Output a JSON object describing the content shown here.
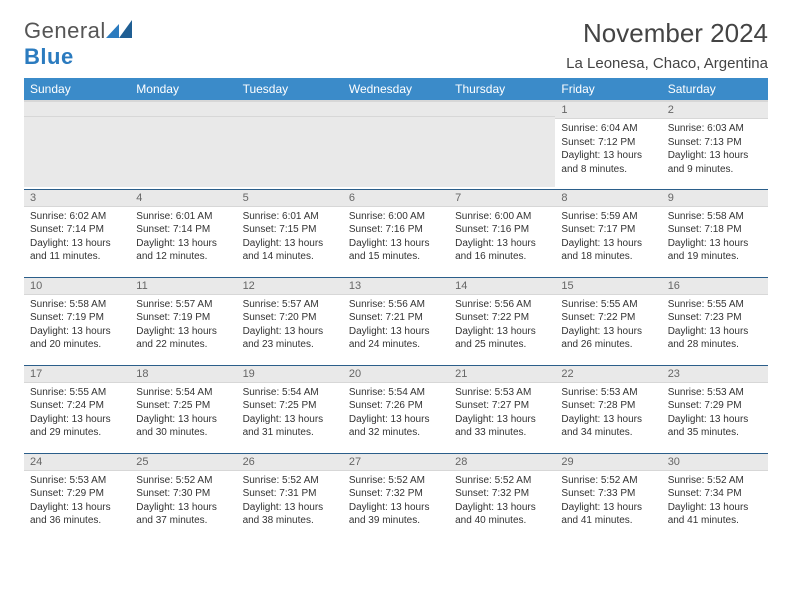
{
  "logo": {
    "text1": "General",
    "text2": "Blue"
  },
  "header": {
    "month": "November 2024",
    "location": "La Leonesa, Chaco, Argentina"
  },
  "dayNames": [
    "Sunday",
    "Monday",
    "Tuesday",
    "Wednesday",
    "Thursday",
    "Friday",
    "Saturday"
  ],
  "style": {
    "header_bg": "#3b8bc9",
    "header_text": "#ffffff",
    "daynum_bg": "#e9e9e9",
    "row_border": "#2b5e8a",
    "title_color": "#444444",
    "body_font_size": 10
  },
  "weeks": [
    [
      {
        "n": "",
        "sr": "",
        "ss": "",
        "dl": ""
      },
      {
        "n": "",
        "sr": "",
        "ss": "",
        "dl": ""
      },
      {
        "n": "",
        "sr": "",
        "ss": "",
        "dl": ""
      },
      {
        "n": "",
        "sr": "",
        "ss": "",
        "dl": ""
      },
      {
        "n": "",
        "sr": "",
        "ss": "",
        "dl": ""
      },
      {
        "n": "1",
        "sr": "Sunrise: 6:04 AM",
        "ss": "Sunset: 7:12 PM",
        "dl": "Daylight: 13 hours and 8 minutes."
      },
      {
        "n": "2",
        "sr": "Sunrise: 6:03 AM",
        "ss": "Sunset: 7:13 PM",
        "dl": "Daylight: 13 hours and 9 minutes."
      }
    ],
    [
      {
        "n": "3",
        "sr": "Sunrise: 6:02 AM",
        "ss": "Sunset: 7:14 PM",
        "dl": "Daylight: 13 hours and 11 minutes."
      },
      {
        "n": "4",
        "sr": "Sunrise: 6:01 AM",
        "ss": "Sunset: 7:14 PM",
        "dl": "Daylight: 13 hours and 12 minutes."
      },
      {
        "n": "5",
        "sr": "Sunrise: 6:01 AM",
        "ss": "Sunset: 7:15 PM",
        "dl": "Daylight: 13 hours and 14 minutes."
      },
      {
        "n": "6",
        "sr": "Sunrise: 6:00 AM",
        "ss": "Sunset: 7:16 PM",
        "dl": "Daylight: 13 hours and 15 minutes."
      },
      {
        "n": "7",
        "sr": "Sunrise: 6:00 AM",
        "ss": "Sunset: 7:16 PM",
        "dl": "Daylight: 13 hours and 16 minutes."
      },
      {
        "n": "8",
        "sr": "Sunrise: 5:59 AM",
        "ss": "Sunset: 7:17 PM",
        "dl": "Daylight: 13 hours and 18 minutes."
      },
      {
        "n": "9",
        "sr": "Sunrise: 5:58 AM",
        "ss": "Sunset: 7:18 PM",
        "dl": "Daylight: 13 hours and 19 minutes."
      }
    ],
    [
      {
        "n": "10",
        "sr": "Sunrise: 5:58 AM",
        "ss": "Sunset: 7:19 PM",
        "dl": "Daylight: 13 hours and 20 minutes."
      },
      {
        "n": "11",
        "sr": "Sunrise: 5:57 AM",
        "ss": "Sunset: 7:19 PM",
        "dl": "Daylight: 13 hours and 22 minutes."
      },
      {
        "n": "12",
        "sr": "Sunrise: 5:57 AM",
        "ss": "Sunset: 7:20 PM",
        "dl": "Daylight: 13 hours and 23 minutes."
      },
      {
        "n": "13",
        "sr": "Sunrise: 5:56 AM",
        "ss": "Sunset: 7:21 PM",
        "dl": "Daylight: 13 hours and 24 minutes."
      },
      {
        "n": "14",
        "sr": "Sunrise: 5:56 AM",
        "ss": "Sunset: 7:22 PM",
        "dl": "Daylight: 13 hours and 25 minutes."
      },
      {
        "n": "15",
        "sr": "Sunrise: 5:55 AM",
        "ss": "Sunset: 7:22 PM",
        "dl": "Daylight: 13 hours and 26 minutes."
      },
      {
        "n": "16",
        "sr": "Sunrise: 5:55 AM",
        "ss": "Sunset: 7:23 PM",
        "dl": "Daylight: 13 hours and 28 minutes."
      }
    ],
    [
      {
        "n": "17",
        "sr": "Sunrise: 5:55 AM",
        "ss": "Sunset: 7:24 PM",
        "dl": "Daylight: 13 hours and 29 minutes."
      },
      {
        "n": "18",
        "sr": "Sunrise: 5:54 AM",
        "ss": "Sunset: 7:25 PM",
        "dl": "Daylight: 13 hours and 30 minutes."
      },
      {
        "n": "19",
        "sr": "Sunrise: 5:54 AM",
        "ss": "Sunset: 7:25 PM",
        "dl": "Daylight: 13 hours and 31 minutes."
      },
      {
        "n": "20",
        "sr": "Sunrise: 5:54 AM",
        "ss": "Sunset: 7:26 PM",
        "dl": "Daylight: 13 hours and 32 minutes."
      },
      {
        "n": "21",
        "sr": "Sunrise: 5:53 AM",
        "ss": "Sunset: 7:27 PM",
        "dl": "Daylight: 13 hours and 33 minutes."
      },
      {
        "n": "22",
        "sr": "Sunrise: 5:53 AM",
        "ss": "Sunset: 7:28 PM",
        "dl": "Daylight: 13 hours and 34 minutes."
      },
      {
        "n": "23",
        "sr": "Sunrise: 5:53 AM",
        "ss": "Sunset: 7:29 PM",
        "dl": "Daylight: 13 hours and 35 minutes."
      }
    ],
    [
      {
        "n": "24",
        "sr": "Sunrise: 5:53 AM",
        "ss": "Sunset: 7:29 PM",
        "dl": "Daylight: 13 hours and 36 minutes."
      },
      {
        "n": "25",
        "sr": "Sunrise: 5:52 AM",
        "ss": "Sunset: 7:30 PM",
        "dl": "Daylight: 13 hours and 37 minutes."
      },
      {
        "n": "26",
        "sr": "Sunrise: 5:52 AM",
        "ss": "Sunset: 7:31 PM",
        "dl": "Daylight: 13 hours and 38 minutes."
      },
      {
        "n": "27",
        "sr": "Sunrise: 5:52 AM",
        "ss": "Sunset: 7:32 PM",
        "dl": "Daylight: 13 hours and 39 minutes."
      },
      {
        "n": "28",
        "sr": "Sunrise: 5:52 AM",
        "ss": "Sunset: 7:32 PM",
        "dl": "Daylight: 13 hours and 40 minutes."
      },
      {
        "n": "29",
        "sr": "Sunrise: 5:52 AM",
        "ss": "Sunset: 7:33 PM",
        "dl": "Daylight: 13 hours and 41 minutes."
      },
      {
        "n": "30",
        "sr": "Sunrise: 5:52 AM",
        "ss": "Sunset: 7:34 PM",
        "dl": "Daylight: 13 hours and 41 minutes."
      }
    ]
  ]
}
